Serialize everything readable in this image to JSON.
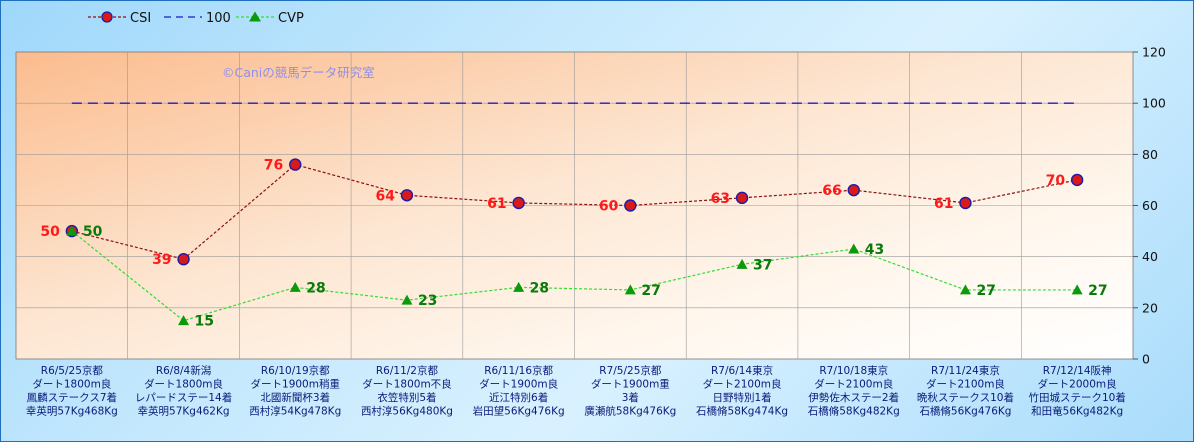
{
  "chart_data": {
    "type": "line",
    "watermark": "©Caniの競馬データ研究室",
    "legend": {
      "placement": "top-left",
      "entries": [
        "CSI",
        "100",
        "CVP"
      ]
    },
    "yaxis": {
      "ylim": [
        0,
        120
      ],
      "ticks": [
        "0",
        "20",
        "40",
        "60",
        "80",
        "100",
        "120"
      ],
      "position": "right"
    },
    "grid": true,
    "categories": [
      [
        "R6/5/25京都",
        "ダート1800m良",
        "鳳麟ステークス7着",
        "幸英明57Kg468Kg"
      ],
      [
        "R6/8/4新潟",
        "ダート1800m良",
        "レパードステー14着",
        "幸英明57Kg462Kg"
      ],
      [
        "R6/10/19京都",
        "ダート1900m稍重",
        "北國新聞杯3着",
        "西村淳54Kg478Kg"
      ],
      [
        "R6/11/2京都",
        "ダート1800m不良",
        "衣笠特別5着",
        "西村淳56Kg480Kg"
      ],
      [
        "R6/11/16京都",
        "ダート1900m良",
        "近江特別6着",
        "岩田望56Kg476Kg"
      ],
      [
        "R7/5/25京都",
        "ダート1900m重",
        "3着",
        "廣瀬航58Kg476Kg"
      ],
      [
        "R7/6/14東京",
        "ダート2100m良",
        "日野特別1着",
        "石橋脩58Kg474Kg"
      ],
      [
        "R7/10/18東京",
        "ダート2100m良",
        "伊勢佐木ステー2着",
        "石橋脩58Kg482Kg"
      ],
      [
        "R7/11/24東京",
        "ダート2100m良",
        "晩秋ステークス10着",
        "石橋脩56Kg476Kg"
      ],
      [
        "R7/12/14阪神",
        "ダート2000m良",
        "竹田城ステーク10着",
        "和田竜56Kg482Kg"
      ]
    ],
    "series": [
      {
        "name": "CSI",
        "values": [
          50,
          39,
          76,
          64,
          61,
          60,
          63,
          66,
          61,
          70
        ],
        "color": "#8b1010",
        "marker_fill": "#d81a1a",
        "marker_edge": "#1c1caa",
        "label_color": "#ff1a1a"
      },
      {
        "name": "100",
        "values": [
          100,
          100,
          100,
          100,
          100,
          100,
          100,
          100,
          100,
          100
        ],
        "color": "#1a1acc"
      },
      {
        "name": "CVP",
        "values": [
          50,
          15,
          28,
          23,
          28,
          27,
          37,
          43,
          27,
          27
        ],
        "color": "#33dd33",
        "marker_fill": "#0a9a0a",
        "label_color": "#0a7a0a"
      }
    ]
  }
}
